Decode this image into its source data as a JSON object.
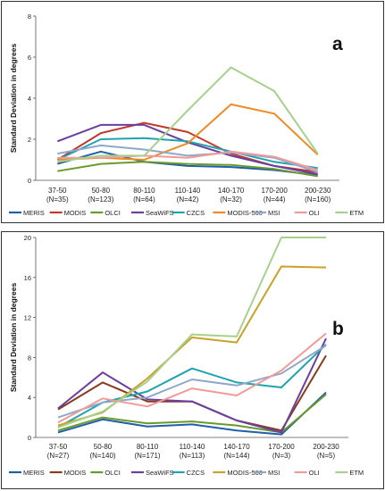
{
  "chart_data": [
    {
      "type": "line",
      "panel_label": "a",
      "ylabel": "Standard Deviation in degrees",
      "ylim": [
        0,
        8
      ],
      "yticks": [
        0,
        2,
        4,
        6,
        8
      ],
      "grid": false,
      "legend_position": "bottom",
      "categories": [
        [
          "37-50",
          "(N=35)"
        ],
        [
          "50-80",
          "(N=123)"
        ],
        [
          "80-110",
          "(N=64)"
        ],
        [
          "110-140",
          "(N=42)"
        ],
        [
          "140-170",
          "(N=32)"
        ],
        [
          "170-200",
          "(N=44)"
        ],
        [
          "200-230",
          "(N=160)"
        ]
      ],
      "series": [
        {
          "name": "MERIS",
          "color": "#1f5fa8",
          "values": [
            0.8,
            1.4,
            0.9,
            0.7,
            0.65,
            0.5,
            0.25
          ]
        },
        {
          "name": "MODIS",
          "color": "#c0392b",
          "values": [
            1.0,
            2.3,
            2.8,
            2.35,
            1.3,
            0.7,
            0.4
          ]
        },
        {
          "name": "OLCI",
          "color": "#6a9a2a",
          "values": [
            0.45,
            0.8,
            0.9,
            0.8,
            0.75,
            0.55,
            0.2
          ]
        },
        {
          "name": "SeaWiFS",
          "color": "#6b3fa0",
          "values": [
            1.9,
            2.7,
            2.7,
            1.85,
            1.2,
            0.7,
            0.3
          ]
        },
        {
          "name": "CZCS",
          "color": "#1fa3b0",
          "values": [
            1.0,
            2.0,
            2.05,
            1.9,
            1.4,
            0.9,
            0.6
          ]
        },
        {
          "name": "MODIS-500",
          "color": "#f08a24",
          "values": [
            1.0,
            1.1,
            1.0,
            1.8,
            3.7,
            3.25,
            1.25
          ]
        },
        {
          "name": "MSI",
          "color": "#90a8c8",
          "values": [
            1.3,
            1.7,
            1.5,
            1.2,
            1.35,
            1.1,
            0.4
          ]
        },
        {
          "name": "OLI",
          "color": "#f09a9a",
          "values": [
            1.1,
            1.1,
            1.2,
            1.1,
            1.4,
            1.15,
            0.5
          ]
        },
        {
          "name": "ETM",
          "color": "#a8d08d",
          "values": [
            0.9,
            1.2,
            1.2,
            3.4,
            5.5,
            4.35,
            1.3
          ]
        }
      ]
    },
    {
      "type": "line",
      "panel_label": "b",
      "ylabel": "Standard Deviation in degrees",
      "ylim": [
        0,
        20
      ],
      "yticks": [
        0,
        4,
        8,
        12,
        16,
        20
      ],
      "grid": false,
      "legend_position": "bottom",
      "categories": [
        [
          "37-50",
          "(N=27)"
        ],
        [
          "50-80",
          "(N=140)"
        ],
        [
          "80-110",
          "(N=171)"
        ],
        [
          "110-140",
          "(N=113)"
        ],
        [
          "140-170",
          "(N=144)"
        ],
        [
          "170-200",
          "(N=3)"
        ],
        [
          "200-230",
          "(N=5)"
        ]
      ],
      "series": [
        {
          "name": "MERIS",
          "color": "#1f5fa8",
          "values": [
            0.5,
            1.8,
            1.1,
            1.3,
            0.7,
            0.3,
            4.5
          ]
        },
        {
          "name": "MODIS",
          "color": "#8b3a1a",
          "values": [
            2.8,
            5.5,
            3.6,
            3.6,
            1.7,
            0.7,
            8.2
          ]
        },
        {
          "name": "OLCI",
          "color": "#6a9a2a",
          "values": [
            0.7,
            2.0,
            1.4,
            1.6,
            1.2,
            0.5,
            4.3
          ]
        },
        {
          "name": "SeaWiFS",
          "color": "#6b3fa0",
          "values": [
            2.9,
            6.5,
            3.8,
            3.6,
            1.7,
            0.5,
            9.9
          ]
        },
        {
          "name": "CZCS",
          "color": "#1fa3b0",
          "values": [
            1.0,
            3.5,
            4.6,
            6.9,
            5.5,
            5.0,
            9.3
          ]
        },
        {
          "name": "MODIS-500",
          "color": "#c9a227",
          "values": [
            1.2,
            2.5,
            5.9,
            10.0,
            9.5,
            17.1,
            17.0
          ]
        },
        {
          "name": "MSI",
          "color": "#90a8c8",
          "values": [
            2.0,
            3.5,
            4.0,
            5.8,
            5.2,
            6.4,
            9.2
          ]
        },
        {
          "name": "OLI",
          "color": "#f09a9a",
          "values": [
            1.5,
            3.9,
            3.1,
            4.9,
            4.2,
            6.7,
            10.4
          ]
        },
        {
          "name": "ETM",
          "color": "#a8d08d",
          "values": [
            1.0,
            2.6,
            5.6,
            10.3,
            10.1,
            20.5,
            20.5
          ]
        }
      ]
    }
  ]
}
